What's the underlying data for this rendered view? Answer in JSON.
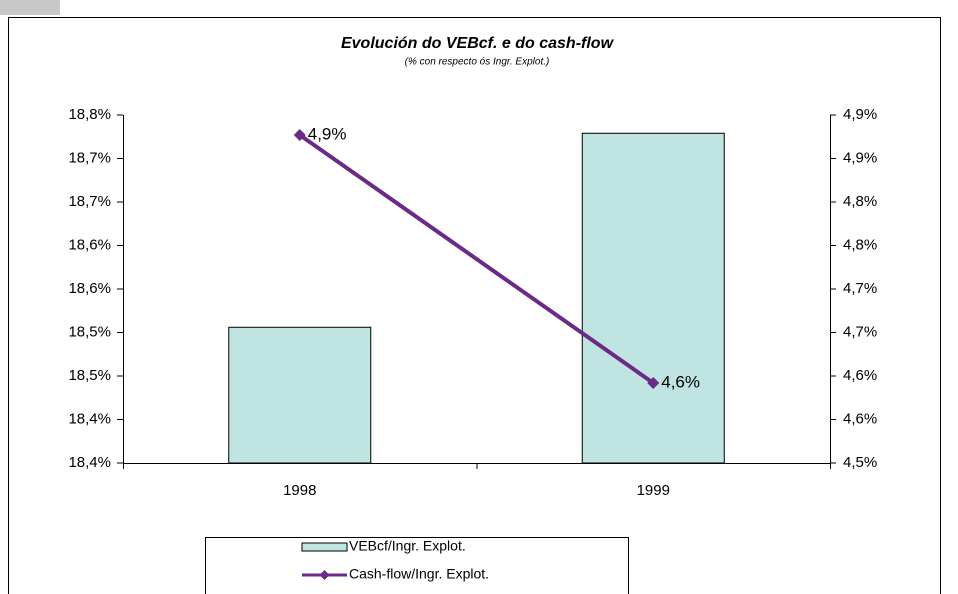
{
  "chart_data": {
    "type": "bar",
    "title": "Evolución do VEBcf. e do cash-flow",
    "subtitle": "(% con  respecto ós Ingr. Explot.)",
    "categories": [
      "1998",
      "1999"
    ],
    "series": [
      {
        "name": "VEBcf/Ingr.  Explot.",
        "type": "bar",
        "color": "#c0e4e1",
        "values": [
          18.506,
          18.729
        ]
      },
      {
        "name": "Cash-flow/Ingr.  Explot.",
        "type": "line",
        "axis": "y2",
        "color": "#6a2a86",
        "values": [
          4.877,
          4.592
        ],
        "value_labels": [
          "4,9%",
          "4,6%"
        ]
      }
    ],
    "ylim": [
      18.35,
      18.75
    ],
    "yticks": [
      {
        "value": 18.35,
        "label": "18,4%"
      },
      {
        "value": 18.4,
        "label": "18,4%"
      },
      {
        "value": 18.45,
        "label": "18,5%"
      },
      {
        "value": 18.5,
        "label": "18,5%"
      },
      {
        "value": 18.55,
        "label": "18,6%"
      },
      {
        "value": 18.6,
        "label": "18,6%"
      },
      {
        "value": 18.65,
        "label": "18,7%"
      },
      {
        "value": 18.7,
        "label": "18,7%"
      },
      {
        "value": 18.75,
        "label": "18,8%"
      }
    ],
    "y2lim": [
      4.5,
      4.9
    ],
    "y2ticks": [
      {
        "value": 4.5,
        "label": "4,5%"
      },
      {
        "value": 4.55,
        "label": "4,6%"
      },
      {
        "value": 4.6,
        "label": "4,6%"
      },
      {
        "value": 4.65,
        "label": "4,7%"
      },
      {
        "value": 4.7,
        "label": "4,7%"
      },
      {
        "value": 4.75,
        "label": "4,8%"
      },
      {
        "value": 4.8,
        "label": "4,8%"
      },
      {
        "value": 4.85,
        "label": "4,9%"
      },
      {
        "value": 4.9,
        "label": "4,9%"
      }
    ],
    "grid": false,
    "legend": "bottom"
  }
}
